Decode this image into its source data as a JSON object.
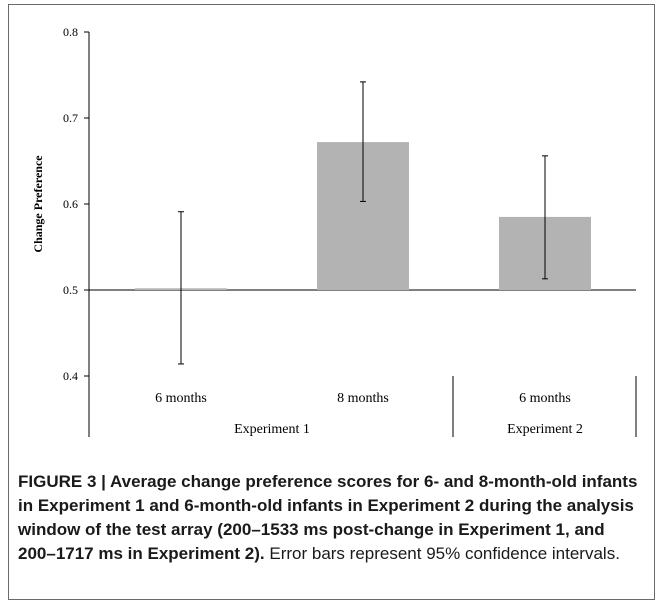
{
  "chart_data": {
    "type": "bar",
    "title": "",
    "ylabel": "Change Preference",
    "ylim": [
      0.4,
      0.8
    ],
    "yticks": [
      "0.4",
      "0.5",
      "0.6",
      "0.7",
      "0.8"
    ],
    "baseline": 0.5,
    "categories": [
      "6 months",
      "8 months",
      "6 months"
    ],
    "groups": [
      {
        "label": "Experiment 1",
        "categories": [
          "6 months",
          "8 months"
        ]
      },
      {
        "label": "Experiment 2",
        "categories": [
          "6 months"
        ]
      }
    ],
    "values": [
      0.502,
      0.672,
      0.585
    ],
    "error_low": [
      0.414,
      0.603,
      0.513
    ],
    "error_high": [
      0.591,
      0.742,
      0.656
    ],
    "bar_color": "#b3b3b3",
    "grid": false
  },
  "caption": {
    "bold": "FIGURE 3 | Average change preference scores for 6- and 8-month-old infants in Experiment 1 and 6-month-old infants in Experiment 2 during the analysis window of the test array (200–1533 ms post-change in Experiment 1, and 200–1717 ms in Experiment 2).",
    "normal": " Error bars represent 95% confidence intervals."
  }
}
